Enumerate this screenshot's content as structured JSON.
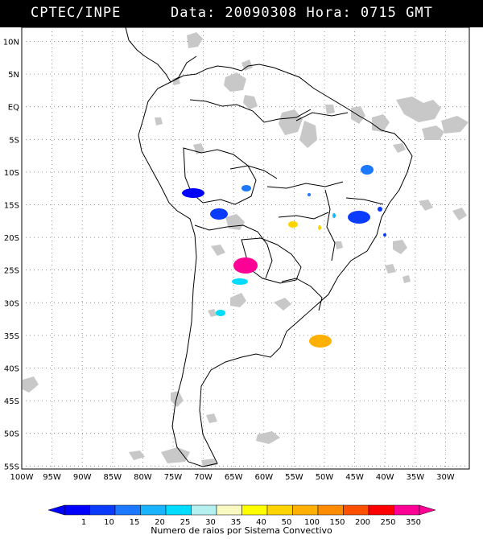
{
  "header": {
    "source": "CPTEC/INPE",
    "date_time": "Data: 20090308 Hora: 0715 GMT"
  },
  "map": {
    "lat_labels": [
      "10N",
      "5N",
      "EQ",
      "5S",
      "10S",
      "15S",
      "20S",
      "25S",
      "30S",
      "35S",
      "40S",
      "45S",
      "50S",
      "55S"
    ],
    "lon_labels": [
      "100W",
      "95W",
      "90W",
      "85W",
      "80W",
      "75W",
      "70W",
      "65W",
      "60W",
      "55W",
      "50W",
      "45W",
      "40W",
      "35W",
      "30W"
    ]
  },
  "legend": {
    "caption": "Numero de raios por Sistema Convectivo",
    "values": [
      "1",
      "10",
      "15",
      "20",
      "25",
      "30",
      "35",
      "40",
      "50",
      "100",
      "150",
      "200",
      "250",
      "350"
    ],
    "colors": [
      "#0000ff",
      "#0a3cff",
      "#1c78ff",
      "#18b4ff",
      "#00dcff",
      "#b4f0f0",
      "#f8f8c0",
      "#ffff00",
      "#ffd400",
      "#ffb000",
      "#ff8c00",
      "#ff5000",
      "#ff0000",
      "#ff0096"
    ]
  }
}
